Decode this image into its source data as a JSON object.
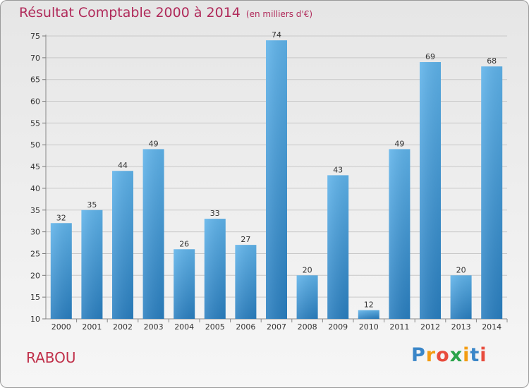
{
  "header": {
    "title": "Résultat Comptable 2000 à 2014",
    "subtitle": "(en milliers d'€)"
  },
  "footer": {
    "place": "RABOU",
    "logo": [
      "P",
      "r",
      "o",
      "x",
      "i",
      "t",
      "i"
    ],
    "logo_colors": [
      "#3a86c8",
      "#f39c12",
      "#e84c3d",
      "#2aa34a",
      "#f39c12",
      "#3a86c8",
      "#e84c3d"
    ]
  },
  "colors": {
    "title": "#b02a5a",
    "bar_light": "#5eb1e8",
    "bar_dark": "#2a7fc0",
    "grid": "#cccccc"
  },
  "chart_data": {
    "type": "bar",
    "title": "Résultat Comptable 2000 à 2014",
    "subtitle": "(en milliers d'€)",
    "categories": [
      "2000",
      "2001",
      "2002",
      "2003",
      "2004",
      "2005",
      "2006",
      "2007",
      "2008",
      "2009",
      "2010",
      "2011",
      "2012",
      "2013",
      "2014"
    ],
    "values": [
      32,
      35,
      44,
      49,
      26,
      33,
      27,
      74,
      20,
      43,
      12,
      49,
      69,
      20,
      68
    ],
    "ylim": [
      10,
      75
    ],
    "yticks": [
      10,
      15,
      20,
      25,
      30,
      35,
      40,
      45,
      50,
      55,
      60,
      65,
      70,
      75
    ],
    "grid": true,
    "data_labels": true
  }
}
